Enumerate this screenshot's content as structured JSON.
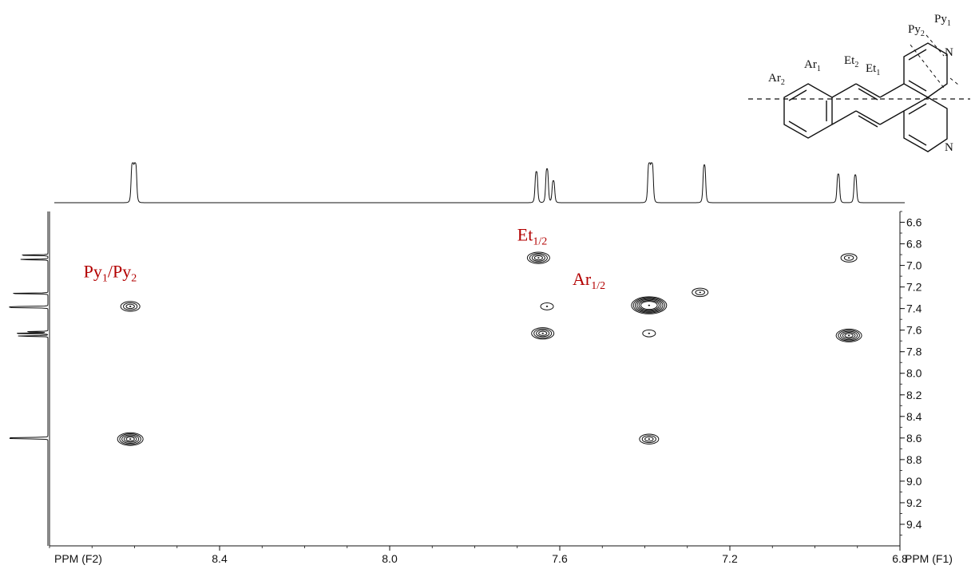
{
  "chart_data": {
    "type": "heatmap",
    "subtype": "2D NMR COSY contour plot",
    "xlabel": "PPM (F2)",
    "ylabel": "PPM (F1)",
    "xlim": [
      8.8,
      6.8
    ],
    "ylim": [
      6.5,
      9.6
    ],
    "x_ticks": [
      8.4,
      8.0,
      7.6,
      7.2,
      6.8
    ],
    "x_tick_labels": [
      "8.4",
      "8.0",
      "7.6",
      "7.2",
      "6.8"
    ],
    "y_ticks": [
      6.6,
      6.8,
      7.0,
      7.2,
      7.4,
      7.6,
      7.8,
      8.0,
      8.2,
      8.4,
      8.6,
      8.8,
      9.0,
      9.2,
      9.4
    ],
    "y_tick_labels": [
      "6.6",
      "6.8",
      "7.0",
      "7.2",
      "7.4",
      "7.6",
      "7.8",
      "8.0",
      "8.2",
      "8.4",
      "8.6",
      "8.8",
      "9.0",
      "9.2",
      "9.4"
    ],
    "grid": false,
    "cross_peaks": [
      {
        "f2": 8.61,
        "f1": 7.38,
        "intensity": 3
      },
      {
        "f2": 8.61,
        "f1": 8.61,
        "intensity": 5
      },
      {
        "f2": 7.65,
        "f1": 6.93,
        "intensity": 4
      },
      {
        "f2": 7.63,
        "f1": 7.38,
        "intensity": 1
      },
      {
        "f2": 7.64,
        "f1": 7.63,
        "intensity": 4
      },
      {
        "f2": 7.39,
        "f1": 7.37,
        "intensity": 8
      },
      {
        "f2": 7.39,
        "f1": 7.63,
        "intensity": 1
      },
      {
        "f2": 7.39,
        "f1": 8.61,
        "intensity": 3
      },
      {
        "f2": 7.27,
        "f1": 7.25,
        "intensity": 2
      },
      {
        "f2": 6.92,
        "f1": 6.93,
        "intensity": 2
      },
      {
        "f2": 6.92,
        "f1": 7.65,
        "intensity": 5
      }
    ],
    "projection_peaks": [
      {
        "ppm": 8.605,
        "height": 0.95
      },
      {
        "ppm": 8.598,
        "height": 0.95
      },
      {
        "ppm": 7.655,
        "height": 0.78
      },
      {
        "ppm": 7.63,
        "height": 0.85
      },
      {
        "ppm": 7.615,
        "height": 0.55
      },
      {
        "ppm": 7.39,
        "height": 0.95
      },
      {
        "ppm": 7.383,
        "height": 0.95
      },
      {
        "ppm": 7.26,
        "height": 0.95
      },
      {
        "ppm": 6.945,
        "height": 0.72
      },
      {
        "ppm": 6.905,
        "height": 0.7
      }
    ],
    "annotations": [
      {
        "base": "Py",
        "sub1": "1",
        "sep": "/",
        "base2": "Py",
        "sub2": "2",
        "f2": 8.72,
        "f1": 7.11
      },
      {
        "base": "Et",
        "sub1": "1/2",
        "sep": "",
        "base2": "",
        "sub2": "",
        "f2": 7.7,
        "f1": 6.77
      },
      {
        "base": "Ar",
        "sub1": "1/2",
        "sep": "",
        "base2": "",
        "sub2": "",
        "f2": 7.57,
        "f1": 7.18
      }
    ]
  },
  "molecule": {
    "labels": [
      {
        "base": "Py",
        "sub": "1"
      },
      {
        "base": "Py",
        "sub": "2"
      },
      {
        "base": "Ar",
        "sub": "1"
      },
      {
        "base": "Ar",
        "sub": "2"
      },
      {
        "base": "Et",
        "sub": "2"
      },
      {
        "base": "Et",
        "sub": "1"
      }
    ],
    "nitrogen_upper": "N",
    "nitrogen_lower": "N"
  }
}
